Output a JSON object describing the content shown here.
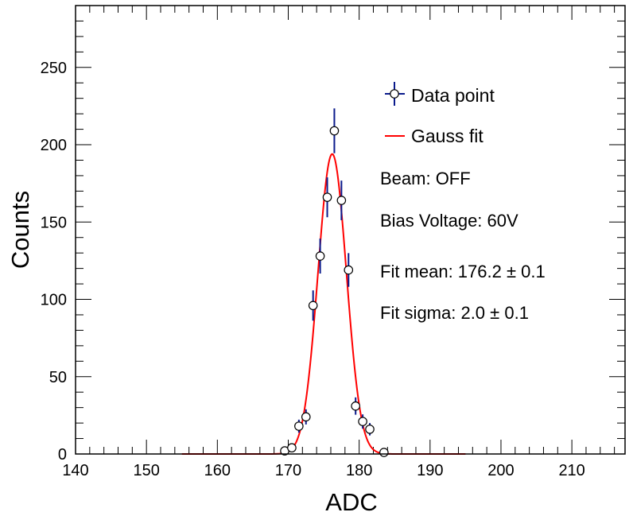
{
  "chart_data": {
    "type": "scatter",
    "xlabel": "ADC",
    "ylabel": "Counts",
    "xlim": [
      140,
      217.5
    ],
    "ylim": [
      0,
      290
    ],
    "x_ticks": [
      140,
      150,
      160,
      170,
      180,
      190,
      200,
      210
    ],
    "y_ticks": [
      0,
      50,
      100,
      150,
      200,
      250
    ],
    "x_tick_labels": [
      "140",
      "150",
      "160",
      "170",
      "180",
      "190",
      "200",
      "210"
    ],
    "y_tick_labels": [
      "0",
      "50",
      "100",
      "150",
      "200",
      "250"
    ],
    "x_minor_step": 2,
    "y_minor_step": 10,
    "grid": false,
    "series": [
      {
        "name": "Data point",
        "kind": "points_with_errors",
        "marker_color": "#000000",
        "error_color": "#0a1a8c",
        "x": [
          169.5,
          170.5,
          171.5,
          172.5,
          173.5,
          174.5,
          175.5,
          176.5,
          177.5,
          178.5,
          179.5,
          180.5,
          181.5,
          183.5
        ],
        "y": [
          2,
          4,
          18,
          24,
          96,
          128,
          166,
          209,
          164,
          119,
          31,
          21,
          16,
          1
        ],
        "yerr": [
          1.4,
          2,
          4.2,
          4.9,
          9.8,
          11.3,
          12.9,
          14.5,
          12.8,
          10.9,
          5.6,
          4.6,
          4,
          1
        ]
      },
      {
        "name": "Gauss fit",
        "kind": "gauss_curve",
        "color": "#ff0000",
        "mean": 176.2,
        "sigma": 2.0,
        "amplitude": 194,
        "x_range": [
          155,
          195
        ]
      }
    ],
    "legend": {
      "position": "top-right",
      "entries": [
        "Data point",
        "Gauss fit"
      ]
    },
    "annotations": [
      "Beam: OFF",
      "Bias Voltage: 60V",
      "Fit mean: 176.2 ± 0.1",
      "Fit sigma: 2.0 ± 0.1"
    ]
  }
}
